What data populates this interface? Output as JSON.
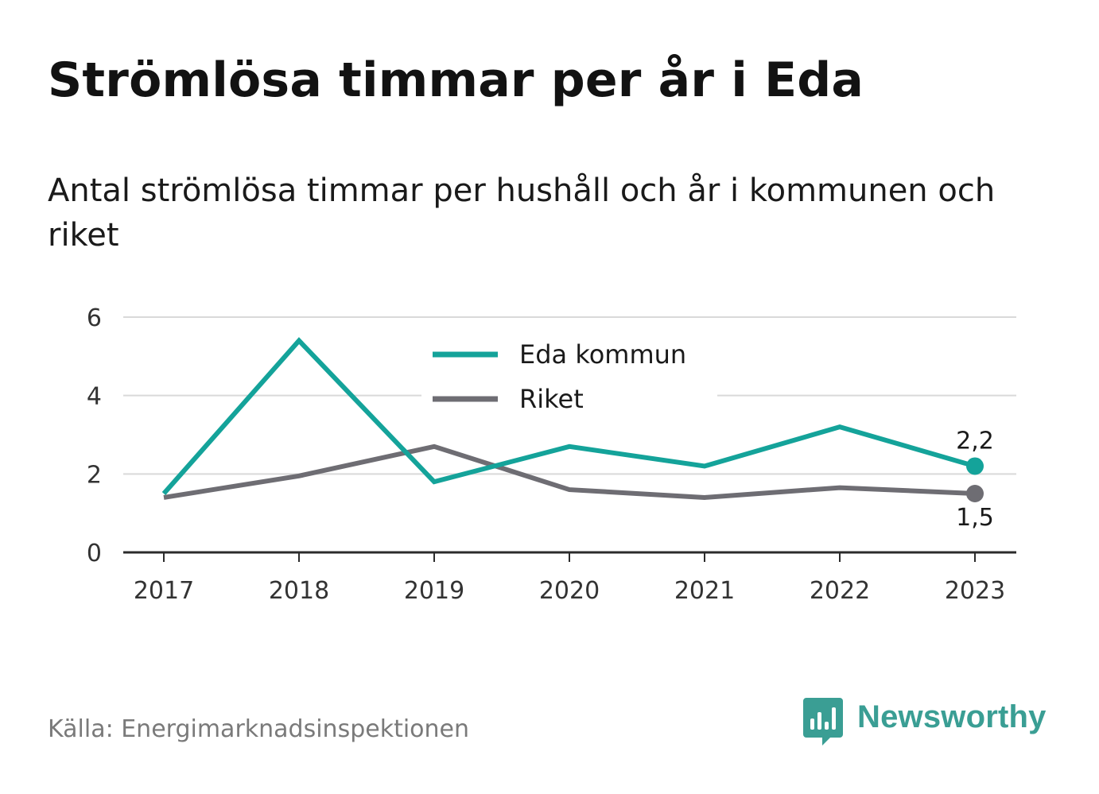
{
  "header": {
    "title": "Strömlösa timmar per år i Eda",
    "subtitle": "Antal strömlösa timmar per hushåll och år i kommunen och riket"
  },
  "footer": {
    "source": "Källa: Energimarknadsinspektionen",
    "brand": "Newsworthy",
    "brand_icon": "newsworthy-logo-icon"
  },
  "colors": {
    "eda": "#14a39a",
    "riket": "#6e6d73",
    "grid": "#d9d9d9",
    "axis": "#2b2b2b",
    "brand": "#3a9e94"
  },
  "chart_data": {
    "type": "line",
    "title": "Strömlösa timmar per år i Eda",
    "subtitle": "Antal strömlösa timmar per hushåll och år i kommunen och riket",
    "x": [
      "2017",
      "2018",
      "2019",
      "2020",
      "2021",
      "2022",
      "2023"
    ],
    "y_ticks": [
      "0",
      "2",
      "4",
      "6"
    ],
    "ylim": [
      0,
      6
    ],
    "grid": true,
    "legend_position": "top-center",
    "series": [
      {
        "name": "Eda kommun",
        "color": "#14a39a",
        "values": [
          1.5,
          5.4,
          1.8,
          2.7,
          2.2,
          3.2,
          2.2
        ],
        "end_label": "2,2"
      },
      {
        "name": "Riket",
        "color": "#6e6d73",
        "values": [
          1.4,
          1.95,
          2.7,
          1.6,
          1.4,
          1.65,
          1.5
        ],
        "end_label": "1,5"
      }
    ]
  }
}
